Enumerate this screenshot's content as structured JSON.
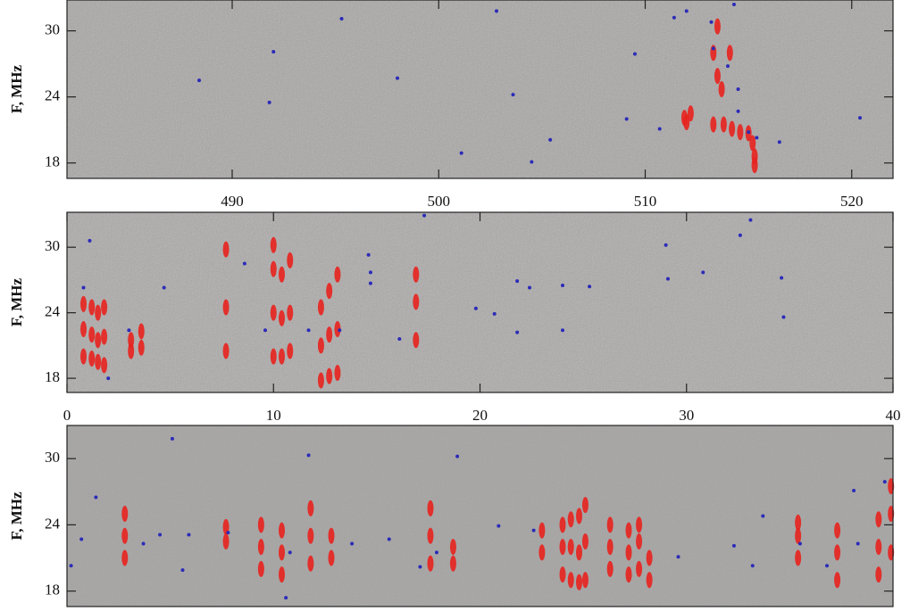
{
  "chart_data": [
    {
      "type": "scatter",
      "ylabel": "F, MHz",
      "xlim": [
        482,
        522
      ],
      "ylim": [
        16.6,
        32.8
      ],
      "xticks": [
        490,
        500,
        510,
        520
      ],
      "yticks": [
        18,
        24,
        30
      ],
      "series": [
        {
          "color": "#e8221e",
          "x": [
            511.9,
            512.2,
            512.0,
            513.3,
            513.5,
            513.5,
            513.7,
            513.3,
            513.8,
            514.1,
            514.2,
            514.6,
            515.0,
            515.3,
            515.3,
            515.2
          ],
          "values": [
            22.1,
            22.5,
            21.7,
            28.0,
            30.4,
            25.9,
            24.7,
            21.5,
            21.5,
            28.0,
            21.1,
            20.8,
            20.7,
            18.6,
            17.8,
            19.8
          ]
        },
        {
          "color": "#2b2bb8",
          "x": [
            488.4,
            492.0,
            491.8,
            495.3,
            498.0,
            502.8,
            503.6,
            501.1,
            504.5,
            505.4,
            509.5,
            509.1,
            510.7,
            511.4,
            512.0,
            513.2,
            513.3,
            514.0,
            514.5,
            514.5,
            515.0,
            515.4,
            516.5,
            520.4,
            514.3
          ],
          "values": [
            25.5,
            28.1,
            23.5,
            31.1,
            25.7,
            31.8,
            24.2,
            18.9,
            18.1,
            20.1,
            27.9,
            22.0,
            21.1,
            31.2,
            31.8,
            30.8,
            28.4,
            26.8,
            24.7,
            22.7,
            20.8,
            20.3,
            19.9,
            22.1,
            32.4
          ]
        }
      ]
    },
    {
      "type": "scatter",
      "ylabel": "F, MHz",
      "xlim": [
        0,
        40
      ],
      "ylim": [
        16.7,
        33.2
      ],
      "xticks": [
        0,
        10,
        20,
        30,
        40
      ],
      "yticks": [
        18,
        24,
        30
      ],
      "series": [
        {
          "color": "#e8221e",
          "x": [
            0.8,
            0.8,
            0.8,
            1.2,
            1.2,
            1.2,
            1.5,
            1.5,
            1.5,
            1.8,
            1.8,
            1.8,
            3.1,
            3.1,
            3.6,
            3.6,
            7.7,
            7.7,
            7.7,
            10.0,
            10.0,
            10.0,
            10.0,
            10.4,
            10.4,
            10.4,
            10.8,
            10.8,
            10.8,
            12.3,
            12.3,
            12.3,
            12.7,
            12.7,
            12.7,
            13.1,
            13.1,
            13.1,
            16.9,
            16.9,
            16.9
          ],
          "values": [
            20,
            22.5,
            24.8,
            19.8,
            22,
            24.5,
            19.5,
            21.5,
            24,
            19.2,
            21.8,
            24.5,
            20.5,
            21.5,
            20.8,
            22.3,
            20.5,
            24.5,
            29.8,
            20,
            24,
            28,
            30.2,
            20,
            23.5,
            27.5,
            20.5,
            24,
            28.8,
            17.8,
            21,
            24.5,
            18.2,
            22,
            26,
            18.5,
            22.5,
            27.5,
            21.5,
            25,
            27.5
          ]
        },
        {
          "color": "#2b2bb8",
          "x": [
            0.8,
            1.1,
            4.7,
            8.6,
            9.6,
            11.7,
            13.2,
            14.6,
            14.7,
            14.7,
            16.1,
            17.3,
            19.8,
            20.7,
            21.8,
            21.8,
            22.4,
            24.0,
            24.0,
            25.3,
            29.0,
            29.1,
            30.8,
            32.6,
            34.6,
            34.7,
            33.1,
            2.0,
            3.0
          ],
          "values": [
            26.3,
            30.6,
            26.3,
            28.5,
            22.4,
            22.4,
            22.4,
            29.3,
            27.7,
            26.7,
            21.6,
            32.9,
            24.4,
            23.9,
            26.9,
            22.2,
            26.3,
            26.5,
            22.4,
            26.4,
            30.2,
            27.1,
            27.7,
            31.1,
            27.2,
            23.6,
            32.5,
            18.0,
            22.4
          ]
        }
      ]
    },
    {
      "type": "scatter",
      "ylabel": "F, MHz",
      "xlim": [
        0,
        40
      ],
      "ylim": [
        16.6,
        33.0
      ],
      "yticks": [
        18,
        24,
        30
      ],
      "series": [
        {
          "color": "#e8221e",
          "x": [
            2.8,
            2.8,
            2.8,
            7.7,
            7.7,
            9.4,
            9.4,
            9.4,
            10.4,
            10.4,
            10.4,
            11.8,
            11.8,
            11.8,
            12.8,
            12.8,
            17.6,
            17.6,
            17.6,
            18.7,
            18.7,
            23.0,
            23.0,
            24.0,
            24.0,
            24.0,
            24.4,
            24.4,
            24.4,
            24.8,
            24.8,
            24.8,
            25.1,
            25.1,
            25.1,
            26.3,
            26.3,
            26.3,
            27.2,
            27.2,
            27.2,
            27.7,
            27.7,
            27.7,
            28.2,
            28.2,
            35.4,
            35.4,
            35.4,
            37.3,
            37.3,
            37.3,
            39.3,
            39.3,
            39.3,
            39.9,
            39.9,
            39.9
          ],
          "values": [
            21,
            23,
            25,
            22.5,
            23.8,
            20,
            22,
            24,
            19.5,
            21.5,
            23.5,
            20.5,
            23,
            25.5,
            21,
            23,
            20.5,
            23,
            25.5,
            20.5,
            22,
            21.5,
            23.5,
            19.5,
            22,
            24,
            19,
            22,
            24.5,
            18.8,
            21.5,
            24.8,
            19,
            22.5,
            25.8,
            20,
            22,
            24,
            19.5,
            21.5,
            23.5,
            20,
            22.5,
            24,
            19,
            21,
            21,
            23,
            24.2,
            19,
            21.5,
            23.5,
            19.5,
            22,
            24.5,
            21.5,
            25,
            27.5
          ]
        },
        {
          "color": "#2b2bb8",
          "x": [
            0.2,
            0.7,
            1.4,
            3.7,
            4.5,
            5.1,
            5.6,
            5.9,
            7.8,
            10.8,
            11.7,
            10.6,
            13.8,
            15.6,
            17.1,
            17.9,
            18.9,
            20.9,
            22.6,
            29.6,
            32.3,
            33.2,
            33.7,
            35.5,
            36.8,
            38.1,
            38.3,
            39.6
          ],
          "values": [
            20.3,
            22.7,
            26.5,
            22.3,
            23.1,
            31.8,
            19.9,
            23.1,
            23.3,
            21.5,
            30.3,
            17.4,
            22.3,
            22.7,
            20.2,
            21.5,
            30.2,
            23.9,
            23.5,
            21.1,
            22.1,
            20.3,
            24.8,
            22.3,
            20.3,
            27.1,
            22.3,
            27.9
          ]
        }
      ]
    }
  ]
}
